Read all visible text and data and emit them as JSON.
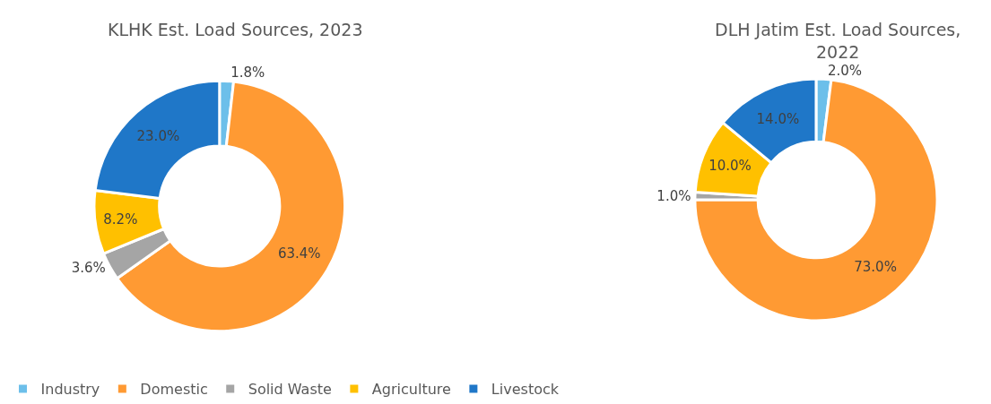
{
  "chart_data": [
    {
      "type": "donut",
      "title": "KLHK Est. Load Sources, 2023",
      "categories": [
        "Industry",
        "Domestic",
        "Solid Waste",
        "Agriculture",
        "Livestock"
      ],
      "values": [
        1.8,
        63.4,
        3.6,
        8.2,
        23.0
      ],
      "colors": [
        "#6cbfea",
        "#ff9a33",
        "#a5a5a5",
        "#ffc000",
        "#1f77c8"
      ],
      "value_labels": [
        "1.8%",
        "63.4%",
        "3.6%",
        "8.2%",
        "23.0%"
      ],
      "legend": "bottom"
    },
    {
      "type": "donut",
      "title": "DLH Jatim Est. Load Sources, 2022",
      "categories": [
        null,
        null,
        null,
        null,
        null
      ],
      "values": [
        2.0,
        73.0,
        1.0,
        10.0,
        14.0
      ],
      "colors": [
        "#6cbfea",
        "#ff9a33",
        "#a5a5a5",
        "#ffc000",
        "#1f77c8"
      ],
      "value_labels": [
        "2.0%",
        "73.0%",
        "1.0%",
        "10.0%",
        "14.0%"
      ]
    }
  ]
}
